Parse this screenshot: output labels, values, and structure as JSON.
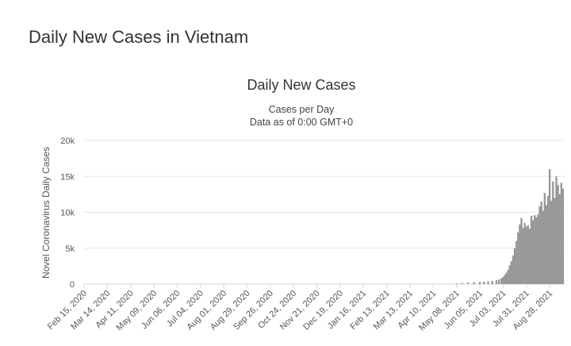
{
  "page": {
    "heading": "Daily New Cases in Vietnam"
  },
  "chart_data": {
    "type": "bar",
    "title": "Daily New Cases",
    "subtitle_lines": [
      "Cases per Day",
      "Data as of 0:00 GMT+0"
    ],
    "xlabel": "",
    "ylabel": "Novel Coronavirus Daily Cases",
    "ylim": [
      0,
      20000
    ],
    "yticks": [
      0,
      5000,
      10000,
      15000,
      20000
    ],
    "ytick_labels": [
      "0",
      "5k",
      "10k",
      "15k",
      "20k"
    ],
    "xlim": [
      "2020-02-15",
      "2021-09-15"
    ],
    "xtick_labels": [
      "Feb 15, 2020",
      "Mar 14, 2020",
      "Apr 11, 2020",
      "May 09, 2020",
      "Jun 06, 2020",
      "Jul 04, 2020",
      "Aug 01, 2020",
      "Aug 29, 2020",
      "Sep 26, 2020",
      "Oct 24, 2020",
      "Nov 21, 2020",
      "Dec 19, 2020",
      "Jan 16, 2021",
      "Feb 13, 2021",
      "Mar 13, 2021",
      "Apr 10, 2021",
      "May 08, 2021",
      "Jun 05, 2021",
      "Jul 03, 2021",
      "Jul 31, 2021",
      "Aug 28, 2021"
    ],
    "grid": true,
    "bar_color": "#999999",
    "series": [
      {
        "x": [
          "2021-05-08",
          "2021-05-15",
          "2021-05-22",
          "2021-05-29",
          "2021-06-05",
          "2021-06-10",
          "2021-06-15",
          "2021-06-20",
          "2021-06-25",
          "2021-06-28",
          "2021-07-01",
          "2021-07-03",
          "2021-07-05",
          "2021-07-07",
          "2021-07-09",
          "2021-07-11",
          "2021-07-13",
          "2021-07-15",
          "2021-07-17",
          "2021-07-19",
          "2021-07-21",
          "2021-07-23",
          "2021-07-25",
          "2021-07-27",
          "2021-07-29",
          "2021-07-31",
          "2021-08-02",
          "2021-08-04",
          "2021-08-06",
          "2021-08-08",
          "2021-08-10",
          "2021-08-12",
          "2021-08-14",
          "2021-08-16",
          "2021-08-18",
          "2021-08-20",
          "2021-08-22",
          "2021-08-24",
          "2021-08-26",
          "2021-08-28",
          "2021-08-30",
          "2021-09-01",
          "2021-09-03",
          "2021-09-05",
          "2021-09-07",
          "2021-09-09",
          "2021-09-11",
          "2021-09-13"
        ],
        "values": [
          100,
          150,
          200,
          250,
          300,
          350,
          400,
          450,
          550,
          650,
          800,
          1000,
          1300,
          1600,
          2000,
          2600,
          3200,
          4000,
          5000,
          6000,
          7200,
          8300,
          9200,
          7800,
          8500,
          8000,
          8200,
          7700,
          9500,
          8900,
          9600,
          9300,
          9700,
          10800,
          11500,
          10200,
          12700,
          11000,
          12300,
          16000,
          11600,
          14300,
          12000,
          15000,
          13800,
          12500,
          14100,
          13300
        ]
      }
    ]
  }
}
